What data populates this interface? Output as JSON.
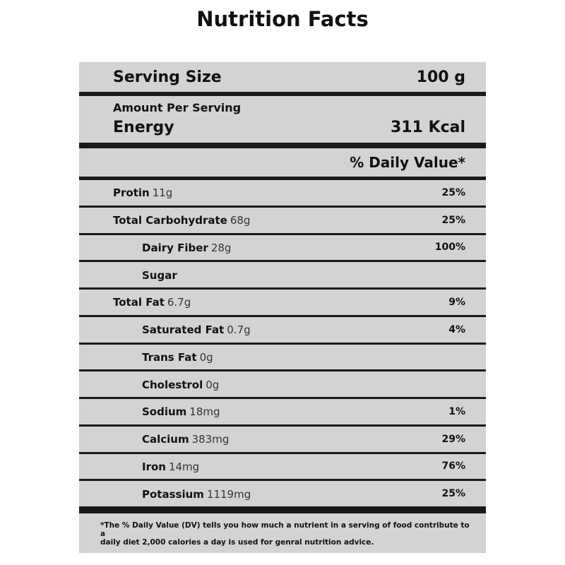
{
  "title": "Nutrition Facts",
  "serving": {
    "label": "Serving Size",
    "value": "100 g"
  },
  "energy": {
    "caption": "Amount Per Serving",
    "label": "Energy",
    "value": "311 Kcal"
  },
  "daily_value_header": "% Daily Value*",
  "nutrients": [
    {
      "name": "Protin",
      "amount": "11g",
      "daily_value": "25%",
      "indent": false
    },
    {
      "name": "Total Carbohydrate",
      "amount": "68g",
      "daily_value": "25%",
      "indent": false
    },
    {
      "name": "Dairy Fiber",
      "amount": "28g",
      "daily_value": "100%",
      "indent": true
    },
    {
      "name": "Sugar",
      "indent": true
    },
    {
      "name": "Total Fat",
      "amount": "6.7g",
      "daily_value": "9%",
      "indent": false
    },
    {
      "name": "Saturated Fat",
      "amount": "0.7g",
      "daily_value": "4%",
      "indent": true
    },
    {
      "name": "Trans Fat",
      "amount": "0g",
      "indent": true
    },
    {
      "name": "Cholestrol",
      "amount": "0g",
      "indent": true
    },
    {
      "name": "Sodium",
      "amount": "18mg",
      "daily_value": "1%",
      "indent": true
    },
    {
      "name": "Calcium",
      "amount": "383mg",
      "daily_value": "29%",
      "indent": true
    },
    {
      "name": "Iron",
      "amount": "14mg",
      "daily_value": "76%",
      "indent": true
    },
    {
      "name": "Potassium",
      "amount": "1119mg",
      "daily_value": "25%",
      "indent": true
    }
  ],
  "footnote": [
    "*The % Daily Value (DV) tells you how much a nutrient in a serving of food contribute to a",
    "daily diet 2,000 calories a day is used for genral nutrition advice."
  ]
}
